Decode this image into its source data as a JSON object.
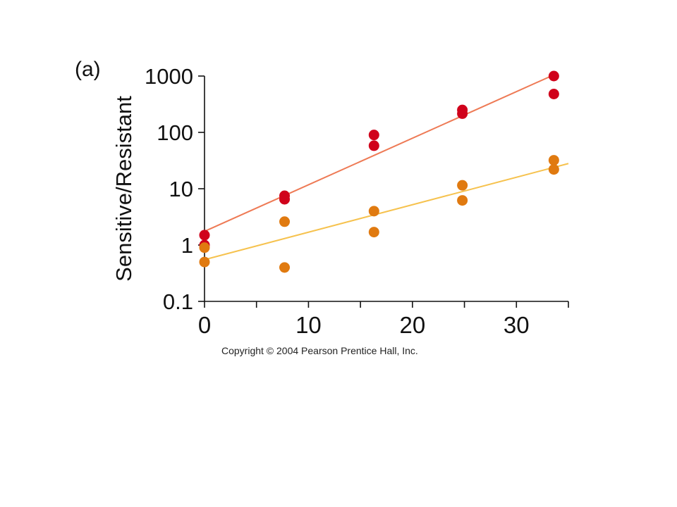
{
  "panel_label": "(a)",
  "copyright": "Copyright © 2004 Pearson Prentice Hall, Inc.",
  "colors": {
    "red_points": "#d0021b",
    "red_line": "#ee7a55",
    "orange_points": "#e07a10",
    "orange_line": "#f6c24e",
    "axis": "#111111"
  },
  "chart_data": {
    "type": "scatter",
    "title": "",
    "xlabel": "",
    "ylabel": "Sensitive/Resistant",
    "yscale": "log",
    "xlim": [
      0,
      35
    ],
    "ylim": [
      0.1,
      1000
    ],
    "x_major_ticks": [
      0,
      10,
      20,
      30
    ],
    "x_minor_ticks": [
      5,
      15,
      25,
      35
    ],
    "x_tick_labels": [
      "0",
      "10",
      "20",
      "30"
    ],
    "y_ticks": [
      0.1,
      1,
      10,
      100,
      1000
    ],
    "y_tick_labels": [
      "0.1",
      "1",
      "10",
      "100",
      "1000"
    ],
    "grid": false,
    "series": [
      {
        "color": "#d0021b",
        "points": [
          {
            "x": 0,
            "y": 1.5
          },
          {
            "x": 0,
            "y": 1.0
          },
          {
            "x": 7.7,
            "y": 7.5
          },
          {
            "x": 7.7,
            "y": 6.5
          },
          {
            "x": 16.3,
            "y": 90
          },
          {
            "x": 16.3,
            "y": 58
          },
          {
            "x": 24.8,
            "y": 250
          },
          {
            "x": 24.8,
            "y": 215
          },
          {
            "x": 33.6,
            "y": 1000
          },
          {
            "x": 33.6,
            "y": 480
          }
        ],
        "fit_line": [
          {
            "x": 0,
            "y": 1.75
          },
          {
            "x": 33.6,
            "y": 1050
          }
        ]
      },
      {
        "color": "#e07a10",
        "points": [
          {
            "x": 0,
            "y": 0.9
          },
          {
            "x": 0,
            "y": 0.5
          },
          {
            "x": 7.7,
            "y": 2.6
          },
          {
            "x": 7.7,
            "y": 0.4
          },
          {
            "x": 16.3,
            "y": 4.0
          },
          {
            "x": 16.3,
            "y": 1.7
          },
          {
            "x": 24.8,
            "y": 11.5
          },
          {
            "x": 24.8,
            "y": 6.2
          },
          {
            "x": 33.6,
            "y": 32
          },
          {
            "x": 33.6,
            "y": 22
          }
        ],
        "fit_line": [
          {
            "x": 0,
            "y": 0.55
          },
          {
            "x": 35,
            "y": 28
          }
        ]
      }
    ]
  }
}
